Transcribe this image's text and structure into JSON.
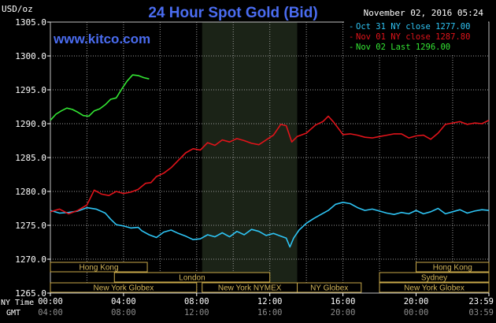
{
  "header": {
    "title": "24 Hour Spot Gold (Bid)",
    "unit_label": "USD/oz",
    "timestamp": "November 02, 2016 05:24",
    "website": "www.kitco.com"
  },
  "legend": [
    {
      "marker": "-",
      "text": "Oct 31 NY close 1277.00",
      "color": "#2ec4f4"
    },
    {
      "marker": "-",
      "text": "Nov 01 NY close 1287.80",
      "color": "#e0131a"
    },
    {
      "marker": "-",
      "text": "Nov 02 Last 1296.00",
      "color": "#33e633"
    }
  ],
  "x_row_labels": {
    "ny": "NY Time",
    "gmt": "GMT"
  },
  "x_ticks_ny": [
    "00:00",
    "04:00",
    "08:00",
    "12:00",
    "16:00",
    "20:00",
    "23:59"
  ],
  "x_ticks_gmt": [
    "04:00",
    "08:00",
    "12:00",
    "16:00",
    "20:00",
    "00:00",
    "03:59"
  ],
  "sessions": [
    {
      "label": "Hong Kong",
      "start": 0,
      "end": 5.3,
      "row": 0
    },
    {
      "label": "London",
      "start": 3.5,
      "end": 12.0,
      "row": 1
    },
    {
      "label": "New York Globex",
      "start": 0,
      "end": 8.0,
      "row": 2
    },
    {
      "label": "New York NYMEX",
      "start": 8.3,
      "end": 13.5,
      "row": 2
    },
    {
      "label": "NY Globex",
      "start": 13.5,
      "end": 17.0,
      "row": 2
    },
    {
      "label": "Hong Kong",
      "start": 20.0,
      "end": 23.983,
      "row": 0
    },
    {
      "label": "Sydney",
      "start": 18.0,
      "end": 23.983,
      "row": 1
    },
    {
      "label": "New York Globex",
      "start": 18.0,
      "end": 23.983,
      "row": 2
    }
  ],
  "chart_data": {
    "type": "line",
    "title": "24 Hour Spot Gold (Bid)",
    "ylabel": "USD/oz",
    "ylim": [
      1265,
      1305
    ],
    "xlim": [
      0,
      23.983
    ],
    "yticks": [
      1265,
      1270,
      1275,
      1280,
      1285,
      1290,
      1295,
      1300,
      1305
    ],
    "grid": true,
    "highlight_range": [
      8.3,
      13.5
    ],
    "legend_position": "top-right",
    "series": [
      {
        "name": "Oct 31 NY close 1277.00",
        "color": "#2ec4f4",
        "x": [
          0,
          0.5,
          1.0,
          1.5,
          2.0,
          2.5,
          3.0,
          3.3,
          3.6,
          4.0,
          4.4,
          4.8,
          5.0,
          5.4,
          5.8,
          6.2,
          6.6,
          7.0,
          7.4,
          7.8,
          8.2,
          8.6,
          9.0,
          9.4,
          9.8,
          10.2,
          10.6,
          11.0,
          11.4,
          11.8,
          12.2,
          12.6,
          12.9,
          13.1,
          13.3,
          13.6,
          14.0,
          14.4,
          14.8,
          15.2,
          15.6,
          16.0,
          16.4,
          16.8,
          17.2,
          17.6,
          18.0,
          18.4,
          18.8,
          19.2,
          19.6,
          20.0,
          20.4,
          20.8,
          21.2,
          21.6,
          22.0,
          22.4,
          22.8,
          23.2,
          23.6,
          23.98
        ],
        "values": [
          1277.2,
          1276.8,
          1276.9,
          1277.1,
          1277.6,
          1277.4,
          1276.8,
          1275.9,
          1275.1,
          1274.9,
          1274.6,
          1274.7,
          1274.2,
          1273.6,
          1273.2,
          1274.0,
          1274.3,
          1273.8,
          1273.4,
          1272.9,
          1273.0,
          1273.6,
          1273.3,
          1273.9,
          1273.3,
          1274.1,
          1273.6,
          1274.4,
          1274.1,
          1273.5,
          1273.8,
          1273.4,
          1273.1,
          1271.8,
          1273.1,
          1274.3,
          1275.3,
          1276.0,
          1276.6,
          1277.2,
          1278.1,
          1278.4,
          1278.2,
          1277.6,
          1277.2,
          1277.4,
          1277.1,
          1276.8,
          1276.6,
          1276.9,
          1276.7,
          1277.2,
          1276.7,
          1277.0,
          1277.5,
          1276.7,
          1277.0,
          1277.3,
          1276.8,
          1277.1,
          1277.3,
          1277.2
        ]
      },
      {
        "name": "Nov 01 NY close 1287.80",
        "color": "#e0131a",
        "x": [
          0,
          0.5,
          1.0,
          1.5,
          2.0,
          2.4,
          2.8,
          3.2,
          3.6,
          4.0,
          4.4,
          4.8,
          5.2,
          5.5,
          5.8,
          6.2,
          6.6,
          7.0,
          7.4,
          7.8,
          8.2,
          8.6,
          9.0,
          9.4,
          9.8,
          10.2,
          10.6,
          11.0,
          11.4,
          11.8,
          12.2,
          12.6,
          12.9,
          13.2,
          13.5,
          14.0,
          14.5,
          14.9,
          15.2,
          15.5,
          16.0,
          16.4,
          16.8,
          17.2,
          17.6,
          18.0,
          18.4,
          18.8,
          19.2,
          19.6,
          20.0,
          20.4,
          20.8,
          21.2,
          21.6,
          22.0,
          22.4,
          22.8,
          23.2,
          23.6,
          23.98
        ],
        "values": [
          1277.0,
          1277.4,
          1276.7,
          1277.2,
          1278.0,
          1280.2,
          1279.6,
          1279.4,
          1280.0,
          1279.7,
          1279.9,
          1280.3,
          1281.2,
          1281.3,
          1282.2,
          1282.7,
          1283.5,
          1284.6,
          1285.7,
          1286.3,
          1286.1,
          1287.2,
          1286.8,
          1287.6,
          1287.3,
          1287.8,
          1287.5,
          1287.1,
          1286.9,
          1287.6,
          1288.3,
          1289.9,
          1289.7,
          1287.3,
          1288.1,
          1288.6,
          1289.8,
          1290.3,
          1291.1,
          1290.2,
          1288.4,
          1288.5,
          1288.3,
          1288.0,
          1287.9,
          1288.1,
          1288.3,
          1288.5,
          1288.5,
          1287.9,
          1288.2,
          1288.3,
          1287.7,
          1288.6,
          1289.9,
          1290.1,
          1290.3,
          1289.9,
          1290.1,
          1290.0,
          1290.5
        ]
      },
      {
        "name": "Nov 02 Last 1296.00",
        "color": "#33e633",
        "x": [
          0,
          0.3,
          0.6,
          0.9,
          1.2,
          1.5,
          1.8,
          2.1,
          2.4,
          2.7,
          3.0,
          3.3,
          3.6,
          3.9,
          4.2,
          4.5,
          4.8,
          5.1,
          5.4
        ],
        "values": [
          1290.5,
          1291.4,
          1291.9,
          1292.3,
          1292.1,
          1291.7,
          1291.2,
          1291.1,
          1291.9,
          1292.2,
          1292.8,
          1293.6,
          1293.8,
          1295.1,
          1296.3,
          1297.2,
          1297.1,
          1296.8,
          1296.6
        ]
      }
    ]
  }
}
